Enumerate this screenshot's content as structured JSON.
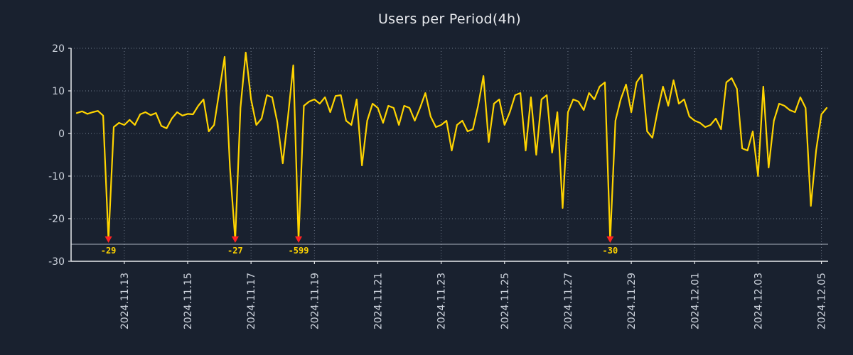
{
  "chart_data": {
    "type": "line",
    "title": "Users per Period(4h)",
    "series_name": "Users",
    "interval_hours": 4,
    "ylim": [
      -30,
      20
    ],
    "y_ticks": [
      20,
      10,
      0,
      -10,
      -20,
      -30
    ],
    "x_ticks": [
      {
        "label": "2024.11.13",
        "index": 9
      },
      {
        "label": "2024.11.15",
        "index": 21
      },
      {
        "label": "2024.11.17",
        "index": 33
      },
      {
        "label": "2024.11.19",
        "index": 45
      },
      {
        "label": "2024.11.21",
        "index": 57
      },
      {
        "label": "2024.11.23",
        "index": 69
      },
      {
        "label": "2024.11.25",
        "index": 81
      },
      {
        "label": "2024.11.27",
        "index": 93
      },
      {
        "label": "2024.11.29",
        "index": 105
      },
      {
        "label": "2024.12.01",
        "index": 117
      },
      {
        "label": "2024.12.03",
        "index": 129
      },
      {
        "label": "2024.12.05",
        "index": 141
      }
    ],
    "values": [
      4.8,
      5.2,
      4.6,
      5.0,
      5.3,
      4.2,
      -25,
      1.5,
      2.5,
      2.0,
      3.2,
      2.0,
      4.5,
      5.0,
      4.3,
      4.8,
      1.8,
      1.2,
      3.5,
      5.0,
      4.2,
      4.6,
      4.5,
      6.5,
      8.0,
      0.5,
      2.0,
      10.0,
      18.0,
      -8.0,
      -25,
      6.0,
      19.0,
      8.0,
      2.0,
      3.5,
      9.0,
      8.5,
      2.5,
      -7.0,
      4.0,
      16.0,
      -25,
      6.5,
      7.5,
      8.0,
      7.0,
      8.5,
      5.0,
      8.8,
      9.0,
      3.0,
      2.0,
      8.0,
      -7.5,
      3.0,
      7.0,
      6.0,
      2.5,
      6.5,
      6.0,
      2.0,
      6.5,
      6.0,
      3.0,
      6.0,
      9.5,
      4.0,
      1.5,
      2.0,
      3.0,
      -4.0,
      2.0,
      3.0,
      0.5,
      1.0,
      6.5,
      13.5,
      -2.0,
      7.0,
      8.0,
      2.0,
      5.0,
      9.0,
      9.5,
      -4.0,
      8.5,
      -5.0,
      8.0,
      9.0,
      -4.5,
      5.0,
      -17.5,
      5.0,
      8.0,
      7.5,
      5.5,
      9.5,
      8.0,
      11.0,
      12.0,
      -25,
      3.0,
      8.0,
      11.5,
      5.0,
      12.0,
      13.8,
      0.5,
      -1.0,
      5.5,
      11.0,
      6.5,
      12.5,
      7.0,
      8.0,
      4.0,
      3.0,
      2.5,
      1.5,
      2.0,
      3.5,
      1.0,
      12.0,
      13.0,
      10.5,
      -3.5,
      -4.0,
      0.5,
      -10.0,
      11.0,
      -8.0,
      3.0,
      7.0,
      6.5,
      5.5,
      5.0,
      8.5,
      6.0,
      -17.0,
      -4.0,
      4.5,
      6.0
    ],
    "clip_min": -25,
    "clip_line": -26,
    "markers": [
      {
        "index": 6,
        "label": "-29"
      },
      {
        "index": 30,
        "label": "-27"
      },
      {
        "index": 42,
        "label": "-599"
      },
      {
        "index": 101,
        "label": "-30"
      }
    ],
    "colors": {
      "background": "#19212f",
      "line": "#ffd400",
      "grid": "#808a9c",
      "axis": "#e8eaee",
      "tick_label": "#ccd2dc",
      "title": "#e8eaee",
      "marker": "#ff2222",
      "marker_label": "#ffd400",
      "clip_line": "#aab2bf"
    }
  }
}
